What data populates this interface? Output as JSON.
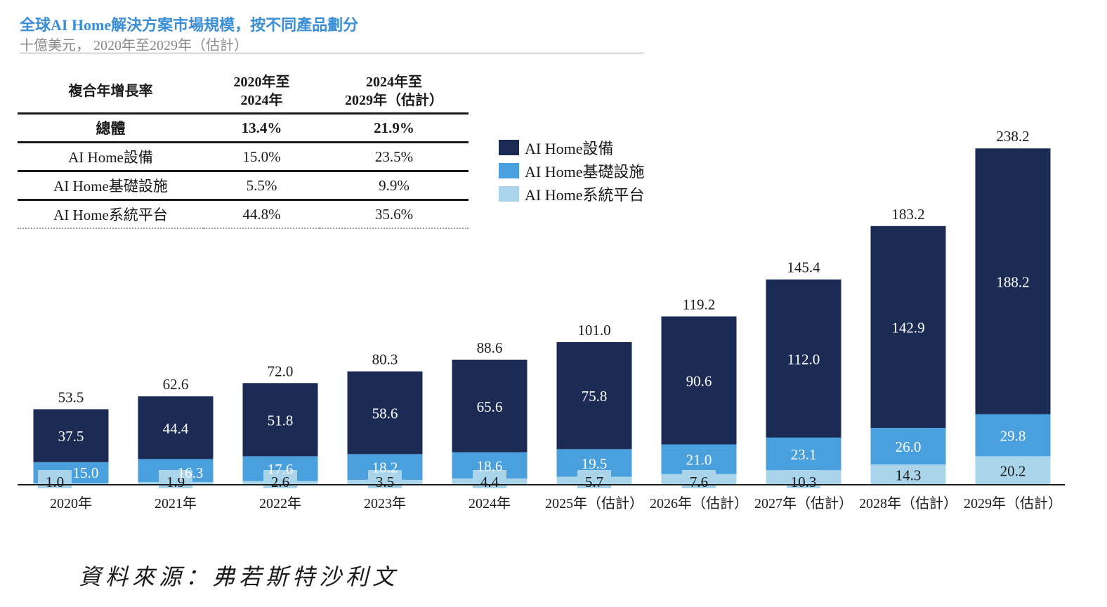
{
  "title": "全球AI Home解決方案市場規模，按不同產品劃分",
  "subtitle": "十億美元， 2020年至2029年（估計）",
  "cagr_table": {
    "header": [
      "複合年增長率",
      "2020年至\n2024年",
      "2024年至\n2029年（估計）"
    ],
    "rows": [
      {
        "label": "總體",
        "a": "13.4%",
        "b": "21.9%"
      },
      {
        "label": "AI Home設備",
        "a": "15.0%",
        "b": "23.5%"
      },
      {
        "label": "AI Home基礎設施",
        "a": "5.5%",
        "b": "9.9%"
      },
      {
        "label": "AI Home系統平台",
        "a": "44.8%",
        "b": "35.6%"
      }
    ]
  },
  "source": "資料來源：弗若斯特沙利文",
  "colors": {
    "devices": "#1c2b54",
    "infrastructure": "#4aa0dc",
    "platform": "#a9d4e9"
  },
  "chart_data": {
    "type": "bar",
    "stacked": true,
    "categories": [
      "2020年",
      "2021年",
      "2022年",
      "2023年",
      "2024年",
      "2025年（估計）",
      "2026年（估計）",
      "2027年（估計）",
      "2028年（估計）",
      "2029年（估計）"
    ],
    "series": [
      {
        "name": "AI Home系統平台",
        "values": [
          1.0,
          1.9,
          2.6,
          3.5,
          4.4,
          5.7,
          7.6,
          10.3,
          14.3,
          20.2
        ]
      },
      {
        "name": "AI Home基礎設施",
        "values": [
          15.0,
          16.3,
          17.6,
          18.2,
          18.6,
          19.5,
          21.0,
          23.1,
          26.0,
          29.8
        ]
      },
      {
        "name": "AI Home設備",
        "values": [
          37.5,
          44.4,
          51.8,
          58.6,
          65.6,
          75.8,
          90.6,
          112.0,
          142.9,
          188.2
        ]
      }
    ],
    "totals": [
      53.5,
      62.6,
      72.0,
      80.3,
      88.6,
      101.0,
      119.2,
      145.4,
      183.2,
      238.2
    ],
    "legend": [
      "AI Home設備",
      "AI Home基礎設施",
      "AI Home系統平台"
    ],
    "legend_position": "top-center",
    "ylim": [
      0,
      240
    ],
    "grid": false,
    "xlabel": "",
    "ylabel": ""
  }
}
